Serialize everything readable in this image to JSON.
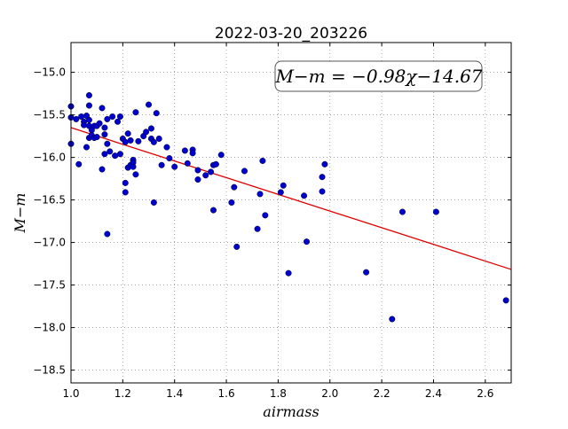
{
  "chart_data": {
    "type": "scatter",
    "title": "2022-03-20_203226",
    "xlabel": "airmass",
    "ylabel": "M−m",
    "xlim": [
      1.0,
      2.7
    ],
    "ylim": [
      -18.65,
      -14.65
    ],
    "x_ticks": [
      1.0,
      1.2,
      1.4,
      1.6,
      1.8,
      2.0,
      2.2,
      2.4,
      2.6
    ],
    "x_tick_labels": [
      "1.0",
      "1.2",
      "1.4",
      "1.6",
      "1.8",
      "2.0",
      "2.2",
      "2.4",
      "2.6"
    ],
    "y_ticks": [
      -15.0,
      -15.5,
      -16.0,
      -16.5,
      -17.0,
      -17.5,
      -18.0,
      -18.5
    ],
    "y_tick_labels": [
      "−15.0",
      "−15.5",
      "−16.0",
      "−16.5",
      "−17.0",
      "−17.5",
      "−18.0",
      "−18.5"
    ],
    "grid": true,
    "annotation": "M−m = −0.98χ−14.67",
    "fit": {
      "slope": -0.98,
      "intercept": -14.67,
      "color": "#dd0000"
    },
    "point_color": "#0000cc",
    "points": [
      [
        1.0,
        -15.4
      ],
      [
        1.0,
        -15.53
      ],
      [
        1.0,
        -15.84
      ],
      [
        1.02,
        -15.55
      ],
      [
        1.03,
        -16.08
      ],
      [
        1.04,
        -15.52
      ],
      [
        1.05,
        -15.58
      ],
      [
        1.05,
        -15.62
      ],
      [
        1.06,
        -15.51
      ],
      [
        1.06,
        -15.88
      ],
      [
        1.07,
        -15.27
      ],
      [
        1.07,
        -15.39
      ],
      [
        1.07,
        -15.56
      ],
      [
        1.07,
        -15.63
      ],
      [
        1.07,
        -15.77
      ],
      [
        1.08,
        -15.68
      ],
      [
        1.08,
        -15.74
      ],
      [
        1.09,
        -15.63
      ],
      [
        1.09,
        -15.77
      ],
      [
        1.1,
        -15.63
      ],
      [
        1.1,
        -15.76
      ],
      [
        1.11,
        -15.6
      ],
      [
        1.12,
        -16.14
      ],
      [
        1.12,
        -15.42
      ],
      [
        1.13,
        -15.65
      ],
      [
        1.13,
        -15.73
      ],
      [
        1.13,
        -15.96
      ],
      [
        1.14,
        -15.55
      ],
      [
        1.14,
        -15.84
      ],
      [
        1.14,
        -16.9
      ],
      [
        1.15,
        -15.93
      ],
      [
        1.16,
        -15.52
      ],
      [
        1.17,
        -15.98
      ],
      [
        1.18,
        -15.58
      ],
      [
        1.19,
        -15.52
      ],
      [
        1.19,
        -15.96
      ],
      [
        1.2,
        -15.78
      ],
      [
        1.21,
        -15.82
      ],
      [
        1.21,
        -16.3
      ],
      [
        1.21,
        -16.41
      ],
      [
        1.22,
        -15.72
      ],
      [
        1.22,
        -16.12
      ],
      [
        1.23,
        -15.8
      ],
      [
        1.23,
        -16.09
      ],
      [
        1.24,
        -16.03
      ],
      [
        1.24,
        -16.06
      ],
      [
        1.24,
        -16.11
      ],
      [
        1.25,
        -15.47
      ],
      [
        1.25,
        -16.2
      ],
      [
        1.26,
        -15.81
      ],
      [
        1.28,
        -15.75
      ],
      [
        1.29,
        -15.7
      ],
      [
        1.3,
        -15.38
      ],
      [
        1.31,
        -15.66
      ],
      [
        1.31,
        -15.78
      ],
      [
        1.32,
        -15.82
      ],
      [
        1.32,
        -16.53
      ],
      [
        1.33,
        -15.48
      ],
      [
        1.34,
        -15.78
      ],
      [
        1.35,
        -16.09
      ],
      [
        1.37,
        -15.88
      ],
      [
        1.38,
        -16.01
      ],
      [
        1.4,
        -16.11
      ],
      [
        1.44,
        -15.92
      ],
      [
        1.45,
        -16.07
      ],
      [
        1.47,
        -15.91
      ],
      [
        1.47,
        -15.95
      ],
      [
        1.49,
        -16.15
      ],
      [
        1.49,
        -16.26
      ],
      [
        1.52,
        -16.21
      ],
      [
        1.54,
        -16.17
      ],
      [
        1.55,
        -16.62
      ],
      [
        1.55,
        -16.09
      ],
      [
        1.56,
        -16.08
      ],
      [
        1.58,
        -15.97
      ],
      [
        1.62,
        -16.53
      ],
      [
        1.63,
        -16.35
      ],
      [
        1.64,
        -17.05
      ],
      [
        1.67,
        -16.16
      ],
      [
        1.72,
        -16.84
      ],
      [
        1.73,
        -16.43
      ],
      [
        1.74,
        -16.04
      ],
      [
        1.75,
        -16.68
      ],
      [
        1.81,
        -16.41
      ],
      [
        1.82,
        -16.33
      ],
      [
        1.84,
        -17.36
      ],
      [
        1.9,
        -16.45
      ],
      [
        1.91,
        -16.99
      ],
      [
        1.97,
        -16.4
      ],
      [
        1.97,
        -16.23
      ],
      [
        1.98,
        -16.08
      ],
      [
        2.14,
        -17.35
      ],
      [
        2.24,
        -17.9
      ],
      [
        2.28,
        -16.64
      ],
      [
        2.41,
        -16.64
      ],
      [
        2.68,
        -17.68
      ]
    ]
  }
}
